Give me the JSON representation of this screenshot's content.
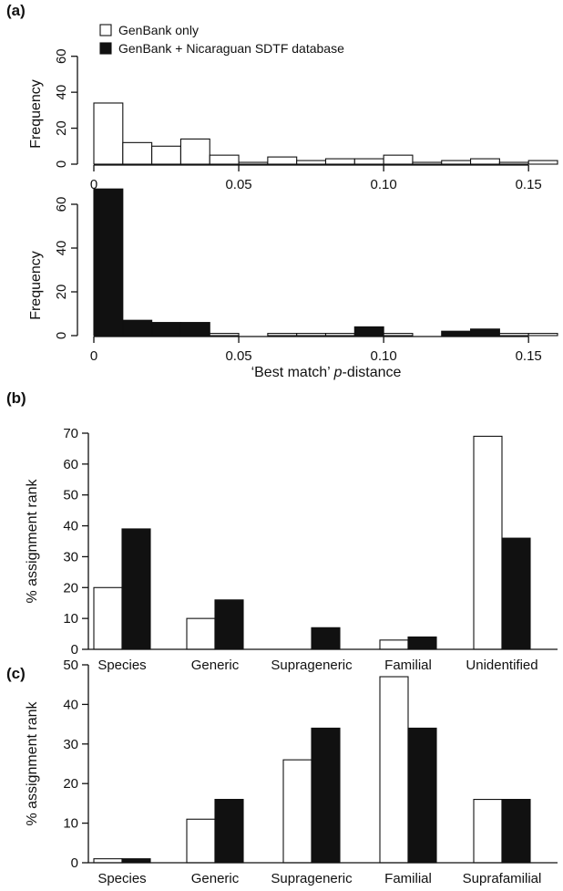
{
  "chart_data": [
    {
      "panel": "(a)",
      "type": "bar",
      "ylabel": "Frequency",
      "xlim": [
        0,
        0.16
      ],
      "ylim": [
        0,
        70
      ],
      "x_ticks": [
        0,
        0.05,
        0.1,
        0.15
      ],
      "x_tick_labels": [
        "0",
        "0.05",
        "0.10",
        "0.15"
      ],
      "y_ticks": [
        0,
        20,
        40,
        60
      ],
      "y_tick_labels": [
        "0",
        "20",
        "40",
        "60"
      ],
      "bin_width": 0.01,
      "bin_starts": [
        0,
        0.01,
        0.02,
        0.03,
        0.04,
        0.05,
        0.06,
        0.07,
        0.08,
        0.09,
        0.1,
        0.11,
        0.12,
        0.13,
        0.14,
        0.15
      ],
      "series": [
        {
          "name": "GenBank only",
          "style": "open",
          "values": [
            34,
            12,
            10,
            14,
            5,
            1,
            4,
            2,
            3,
            3,
            5,
            1,
            2,
            3,
            1,
            2
          ]
        }
      ],
      "legend": [
        {
          "name": "GenBank only",
          "style": "open"
        },
        {
          "name": "GenBank + Nicaraguan SDTF database",
          "style": "filled"
        }
      ],
      "legend_position": "top-left"
    },
    {
      "panel": "",
      "type": "bar",
      "ylabel": "Frequency",
      "xlabel_parts": [
        "‘Best match’ ",
        "p",
        "-distance"
      ],
      "xlim": [
        0,
        0.16
      ],
      "ylim": [
        0,
        70
      ],
      "x_ticks": [
        0,
        0.05,
        0.1,
        0.15
      ],
      "x_tick_labels": [
        "0",
        "0.05",
        "0.10",
        "0.15"
      ],
      "y_ticks": [
        0,
        20,
        40,
        60
      ],
      "y_tick_labels": [
        "0",
        "20",
        "40",
        "60"
      ],
      "bin_width": 0.01,
      "bin_starts": [
        0,
        0.01,
        0.02,
        0.03,
        0.04,
        0.05,
        0.06,
        0.07,
        0.08,
        0.09,
        0.1,
        0.11,
        0.12,
        0.13,
        0.14,
        0.15
      ],
      "series": [
        {
          "name": "GenBank + Nicaraguan SDTF database",
          "values": [
            67,
            7,
            6,
            6,
            1,
            0,
            1,
            1,
            1,
            4,
            1,
            0,
            2,
            3,
            1,
            1
          ],
          "styles": [
            "filled",
            "filled",
            "filled",
            "filled",
            "open",
            "open",
            "open",
            "open",
            "open",
            "filled",
            "open",
            "open",
            "filled",
            "filled",
            "open",
            "open"
          ]
        }
      ]
    },
    {
      "panel": "(b)",
      "type": "bar",
      "ylabel": "% assignment rank",
      "categories": [
        "Species",
        "Generic",
        "Suprageneric",
        "Familial",
        "Unidentified"
      ],
      "ylim": [
        0,
        70
      ],
      "y_ticks": [
        0,
        10,
        20,
        30,
        40,
        50,
        60,
        70
      ],
      "y_tick_labels": [
        "0",
        "10",
        "20",
        "30",
        "40",
        "50",
        "60",
        "70"
      ],
      "series": [
        {
          "name": "GenBank only",
          "style": "open",
          "values": [
            20,
            10,
            0,
            3,
            69
          ]
        },
        {
          "name": "GenBank + Nicaraguan SDTF database",
          "style": "filled",
          "values": [
            39,
            16,
            7,
            4,
            36
          ]
        }
      ]
    },
    {
      "panel": "(c)",
      "type": "bar",
      "ylabel": "% assignment rank",
      "categories": [
        "Species",
        "Generic",
        "Suprageneric",
        "Familial",
        "Suprafamilial"
      ],
      "ylim": [
        0,
        50
      ],
      "y_ticks": [
        0,
        10,
        20,
        30,
        40,
        50
      ],
      "y_tick_labels": [
        "0",
        "10",
        "20",
        "30",
        "40",
        "50"
      ],
      "series": [
        {
          "name": "GenBank only",
          "style": "open",
          "values": [
            1,
            11,
            26,
            47,
            16
          ]
        },
        {
          "name": "GenBank + Nicaraguan SDTF database",
          "style": "filled",
          "values": [
            1,
            16,
            34,
            34,
            16
          ]
        }
      ]
    }
  ]
}
